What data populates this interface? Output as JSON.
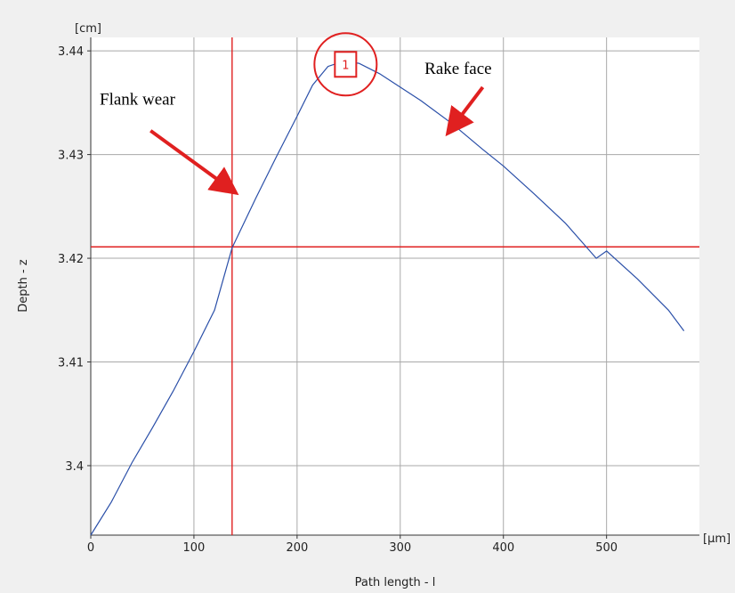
{
  "chart_data": {
    "type": "line",
    "xlabel": "Path length - l",
    "ylabel": "Depth - z",
    "x_unit": "[µm]",
    "y_unit": "[cm]",
    "xlim": [
      0,
      590
    ],
    "ylim": [
      3.3933,
      3.4413
    ],
    "x_ticks": [
      0,
      100,
      200,
      300,
      400,
      500
    ],
    "x_tick_labels": [
      "0",
      "100",
      "200",
      "300",
      "400",
      "500"
    ],
    "y_ticks": [
      3.4,
      3.41,
      3.42,
      3.43,
      3.44
    ],
    "y_tick_labels": [
      "3.4",
      "3.41",
      "3.42",
      "3.43",
      "3.44"
    ],
    "grid": true,
    "series": [
      {
        "color": "#2a4fa8",
        "x": [
          0,
          20,
          40,
          60,
          80,
          100,
          120,
          137,
          160,
          180,
          200,
          215,
          230,
          245,
          260,
          280,
          300,
          320,
          350,
          380,
          400,
          430,
          460,
          490,
          500,
          530,
          560,
          575
        ],
        "y": [
          3.3933,
          3.3965,
          3.4003,
          3.4037,
          3.4072,
          3.411,
          3.415,
          3.421,
          3.4258,
          3.4298,
          3.4337,
          3.4367,
          3.4385,
          3.439,
          3.4388,
          3.4378,
          3.4365,
          3.4352,
          3.433,
          3.4305,
          3.4289,
          3.4262,
          3.4234,
          3.42,
          3.4207,
          3.418,
          3.415,
          3.413
        ]
      }
    ],
    "cursor": {
      "x": 137,
      "y": 3.4211,
      "color": "#e02020"
    },
    "marker": {
      "label": "1",
      "x": 247,
      "y": 3.4387,
      "color": "#e02020"
    },
    "annotations": [
      {
        "text": "Flank wear",
        "text_x": 0,
        "text_y": 3.4348,
        "arrow_from": [
          58,
          3.4323
        ],
        "arrow_to": [
          138,
          3.4265
        ]
      },
      {
        "text": "Rake face",
        "text_x": 315,
        "text_y": 3.4378,
        "arrow_from": [
          380,
          3.4365
        ],
        "arrow_to": [
          348,
          3.4323
        ]
      }
    ]
  }
}
